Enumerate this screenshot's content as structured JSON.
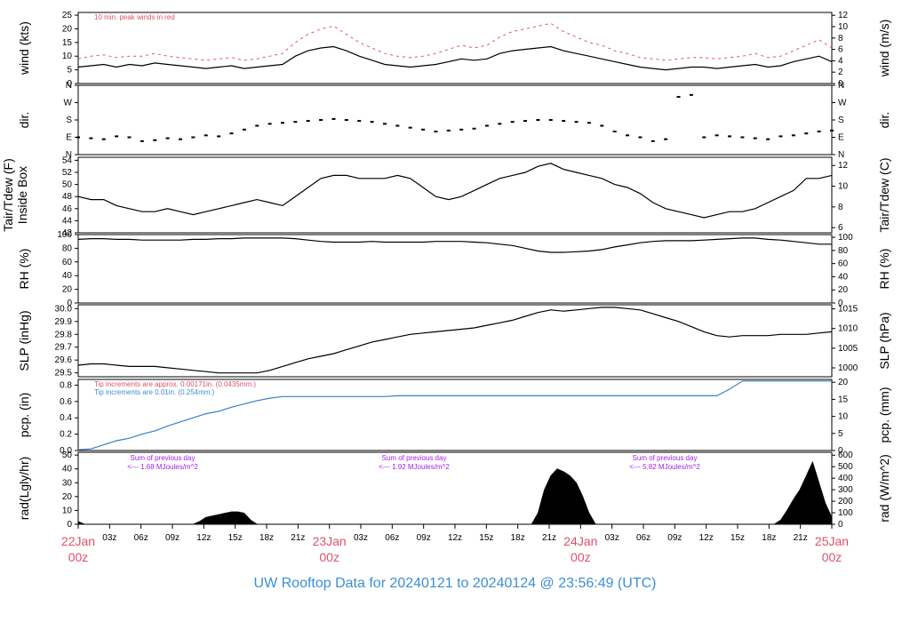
{
  "footer": {
    "title": "UW Rooftop Data for 20240121  to  20240124 @ 23:56:49  (UTC)"
  },
  "colors": {
    "data": "#000000",
    "precip": "#3a7fc4",
    "date_label": "#e0506a",
    "note_red": "#e0506a",
    "note_blue": "#3a8fd6",
    "note_purple": "#a020f0",
    "footer": "#3a8fd6"
  },
  "chart_data": [
    {
      "type": "line",
      "ylabel_left": "wind (kts)",
      "ylabel_right": "wind (m/s)",
      "ylim": [
        0,
        26
      ],
      "yticks_left": [
        "0",
        "5",
        "10",
        "15",
        "20",
        "25"
      ],
      "yticks_right": [
        "0",
        "2",
        "4",
        "6",
        "8",
        "10",
        "12"
      ],
      "annotation": "10 min. peak winds in red",
      "series": [
        {
          "name": "wind",
          "values": [
            6,
            6.5,
            7,
            6,
            7,
            6.5,
            7.5,
            7,
            6.5,
            6,
            5.5,
            6,
            6.5,
            5.5,
            6,
            6.5,
            7,
            10,
            12,
            13,
            13.5,
            12,
            10,
            8.5,
            7,
            6.5,
            6,
            6.5,
            7,
            8,
            9,
            8.5,
            9,
            11,
            12,
            12.5,
            13,
            13.5,
            12,
            11,
            10,
            9,
            8,
            7,
            6,
            5.5,
            5,
            5.5,
            6,
            6,
            5.5,
            6,
            6.5,
            7,
            6,
            6.5,
            8,
            9,
            10,
            8
          ]
        },
        {
          "name": "10 min. peak winds",
          "values": [
            9,
            10,
            10.5,
            9.5,
            10,
            10,
            11,
            10,
            9.5,
            9,
            8.5,
            9,
            9.5,
            8.5,
            9,
            10,
            11,
            15,
            18,
            20,
            21,
            18,
            15,
            13,
            11,
            10,
            9.5,
            10,
            11,
            12.5,
            14,
            13,
            14,
            17,
            19,
            20,
            21,
            22,
            19,
            17,
            15,
            14,
            12,
            11,
            9.5,
            9,
            8.5,
            9,
            9.5,
            9.5,
            9,
            9.5,
            10,
            11,
            9.5,
            10,
            12,
            14,
            16,
            13
          ]
        }
      ]
    },
    {
      "type": "scatter",
      "ylabel_left": "dir.",
      "ylabel_right": "dir.",
      "yticks_left": [
        "N",
        "E",
        "S",
        "W",
        "N"
      ],
      "yticks_right": [
        "N",
        "E",
        "S",
        "W",
        "N"
      ],
      "ylim": [
        0,
        360
      ],
      "values": [
        90,
        85,
        80,
        95,
        90,
        70,
        75,
        85,
        80,
        90,
        100,
        95,
        110,
        130,
        150,
        160,
        165,
        170,
        175,
        180,
        185,
        180,
        175,
        170,
        160,
        150,
        140,
        130,
        120,
        125,
        130,
        135,
        150,
        160,
        170,
        175,
        180,
        180,
        175,
        170,
        165,
        150,
        120,
        100,
        90,
        70,
        80,
        300,
        310,
        90,
        100,
        95,
        90,
        85,
        80,
        95,
        100,
        110,
        120,
        125
      ]
    },
    {
      "type": "line",
      "ylabel_left": "Tair/Tdew (F)\nInside Box",
      "ylabel_right": "Tair/Tdew (C)",
      "ylim": [
        42,
        54.5
      ],
      "yticks_left": [
        "42",
        "44",
        "46",
        "48",
        "50",
        "52",
        "54"
      ],
      "yticks_right": [
        "6",
        "8",
        "10",
        "12"
      ],
      "series": [
        {
          "name": "Tair",
          "values": [
            48,
            47.5,
            47.5,
            46.5,
            46,
            45.5,
            45.5,
            46,
            45.5,
            45,
            45.5,
            46,
            46.5,
            47,
            47.5,
            47,
            46.5,
            48,
            49.5,
            51,
            51.5,
            51.5,
            51,
            51,
            51,
            51.5,
            51,
            49.5,
            48,
            47.5,
            48,
            49,
            50,
            51,
            51.5,
            52,
            53,
            53.5,
            52.5,
            52,
            51.5,
            51,
            50,
            49.5,
            48.5,
            47,
            46,
            45.5,
            45,
            44.5,
            45,
            45.5,
            45.5,
            46,
            47,
            48,
            49,
            51,
            51,
            51.5
          ]
        }
      ]
    },
    {
      "type": "line",
      "ylabel_left": "RH (%)",
      "ylabel_right": "RH (%)",
      "ylim": [
        0,
        100
      ],
      "yticks_left": [
        "0",
        "20",
        "40",
        "60",
        "80",
        "100"
      ],
      "yticks_right": [
        "0",
        "20",
        "40",
        "60",
        "80",
        "100"
      ],
      "series": [
        {
          "name": "RH",
          "values": [
            93,
            94,
            94,
            93,
            93,
            92,
            92,
            92,
            92,
            93,
            93,
            94,
            94,
            95,
            95,
            95,
            95,
            94,
            92,
            90,
            89,
            89,
            89,
            90,
            89,
            89,
            89,
            89,
            90,
            90,
            90,
            89,
            88,
            86,
            84,
            80,
            76,
            74,
            74,
            75,
            76,
            78,
            82,
            85,
            88,
            90,
            91,
            91,
            91,
            92,
            93,
            94,
            95,
            95,
            93,
            92,
            90,
            88,
            86,
            86
          ]
        }
      ]
    },
    {
      "type": "line",
      "ylabel_left": "SLP (inHg)",
      "ylabel_right": "SLP (hPa)",
      "ylim": [
        29.47,
        30.03
      ],
      "yticks_left": [
        "29.5",
        "29.6",
        "29.7",
        "29.8",
        "29.9",
        "30.0"
      ],
      "yticks_right": [
        "1000",
        "1005",
        "1010",
        "1015"
      ],
      "series": [
        {
          "name": "SLP",
          "values": [
            29.56,
            29.57,
            29.57,
            29.56,
            29.55,
            29.55,
            29.55,
            29.54,
            29.53,
            29.52,
            29.51,
            29.5,
            29.5,
            29.5,
            29.5,
            29.52,
            29.55,
            29.58,
            29.61,
            29.63,
            29.65,
            29.68,
            29.71,
            29.74,
            29.76,
            29.78,
            29.8,
            29.81,
            29.82,
            29.83,
            29.84,
            29.85,
            29.87,
            29.89,
            29.91,
            29.94,
            29.97,
            29.99,
            29.98,
            29.99,
            30.0,
            30.01,
            30.01,
            30.0,
            29.99,
            29.96,
            29.93,
            29.9,
            29.86,
            29.82,
            29.79,
            29.78,
            29.79,
            29.79,
            29.79,
            29.8,
            29.8,
            29.8,
            29.81,
            29.82
          ]
        }
      ]
    },
    {
      "type": "line",
      "ylabel_left": "pcp. (in)",
      "ylabel_right": "pcp. (mm)",
      "ylim": [
        0,
        0.87
      ],
      "yticks_left": [
        "0.0",
        "0.2",
        "0.4",
        "0.6",
        "0.8"
      ],
      "yticks_right": [
        "0",
        "5",
        "10",
        "15",
        "20"
      ],
      "annotation_1": "Tip increments are approx. 0.00171in. (0.0435mm.)",
      "annotation_2": "Tip increments are 0.01in. (0.254mm.)",
      "series": [
        {
          "name": "pcp",
          "values": [
            0.01,
            0.02,
            0.07,
            0.12,
            0.15,
            0.2,
            0.24,
            0.3,
            0.35,
            0.4,
            0.45,
            0.48,
            0.53,
            0.57,
            0.61,
            0.64,
            0.66,
            0.66,
            0.66,
            0.66,
            0.66,
            0.66,
            0.66,
            0.66,
            0.66,
            0.67,
            0.67,
            0.67,
            0.67,
            0.67,
            0.67,
            0.67,
            0.67,
            0.67,
            0.67,
            0.67,
            0.67,
            0.67,
            0.67,
            0.67,
            0.67,
            0.67,
            0.67,
            0.67,
            0.67,
            0.67,
            0.67,
            0.67,
            0.67,
            0.67,
            0.67,
            0.75,
            0.85,
            0.85,
            0.85,
            0.85,
            0.85,
            0.85,
            0.85,
            0.85
          ]
        }
      ]
    },
    {
      "type": "area",
      "ylabel_left": "rad(Lgly/hr)",
      "ylabel_right": "rad (W/m^2)",
      "ylim": [
        0,
        52
      ],
      "yticks_left": [
        "0",
        "10",
        "20",
        "30",
        "40",
        "50"
      ],
      "yticks_right": [
        "0",
        "100",
        "200",
        "300",
        "400",
        "500",
        "600"
      ],
      "annotations": [
        {
          "line1": "Sum of previous day",
          "line2": "<--- 1.68 MJoules/m^2"
        },
        {
          "line1": "Sum of previous day",
          "line2": "<--- 1.92 MJoules/m^2"
        },
        {
          "line1": "Sum of previous day",
          "line2": "<--- 5.82 MJoules/m^2"
        }
      ],
      "series": [
        {
          "name": "rad",
          "values": [
            2,
            0,
            0,
            0,
            0,
            0,
            0,
            0,
            0,
            0,
            0,
            0,
            0,
            0,
            0,
            0,
            0,
            0,
            0,
            2,
            5,
            6,
            7,
            8,
            9,
            9,
            8,
            3,
            0,
            0,
            0,
            0,
            0,
            0,
            0,
            0,
            0,
            0,
            0,
            0,
            0,
            0,
            0,
            0,
            0,
            0,
            0,
            0,
            0,
            0,
            0,
            0,
            0,
            0,
            0,
            0,
            0,
            0,
            0,
            0,
            0,
            0,
            0,
            0,
            0,
            0,
            0,
            0,
            0,
            0,
            0,
            0,
            8,
            25,
            35,
            40,
            38,
            35,
            30,
            20,
            8,
            0,
            0,
            0,
            0,
            0,
            0,
            0,
            0,
            0,
            0,
            0,
            0,
            0,
            0,
            0,
            0,
            0,
            0,
            0,
            0,
            0,
            0,
            0,
            0,
            0,
            0,
            0,
            0,
            0,
            3,
            10,
            18,
            25,
            35,
            45,
            30,
            15,
            5
          ]
        }
      ]
    }
  ],
  "xaxis": {
    "hours": [
      "03z",
      "06z",
      "09z",
      "12z",
      "15z",
      "18z",
      "21z",
      "03z",
      "06z",
      "09z",
      "12z",
      "15z",
      "18z",
      "21z",
      "03z",
      "06z",
      "09z",
      "12z",
      "15z",
      "18z",
      "21z"
    ],
    "dates": [
      {
        "date": "22Jan",
        "time": "00z"
      },
      {
        "date": "23Jan",
        "time": "00z"
      },
      {
        "date": "24Jan",
        "time": "00z"
      },
      {
        "date": "25Jan",
        "time": "00z"
      }
    ]
  }
}
